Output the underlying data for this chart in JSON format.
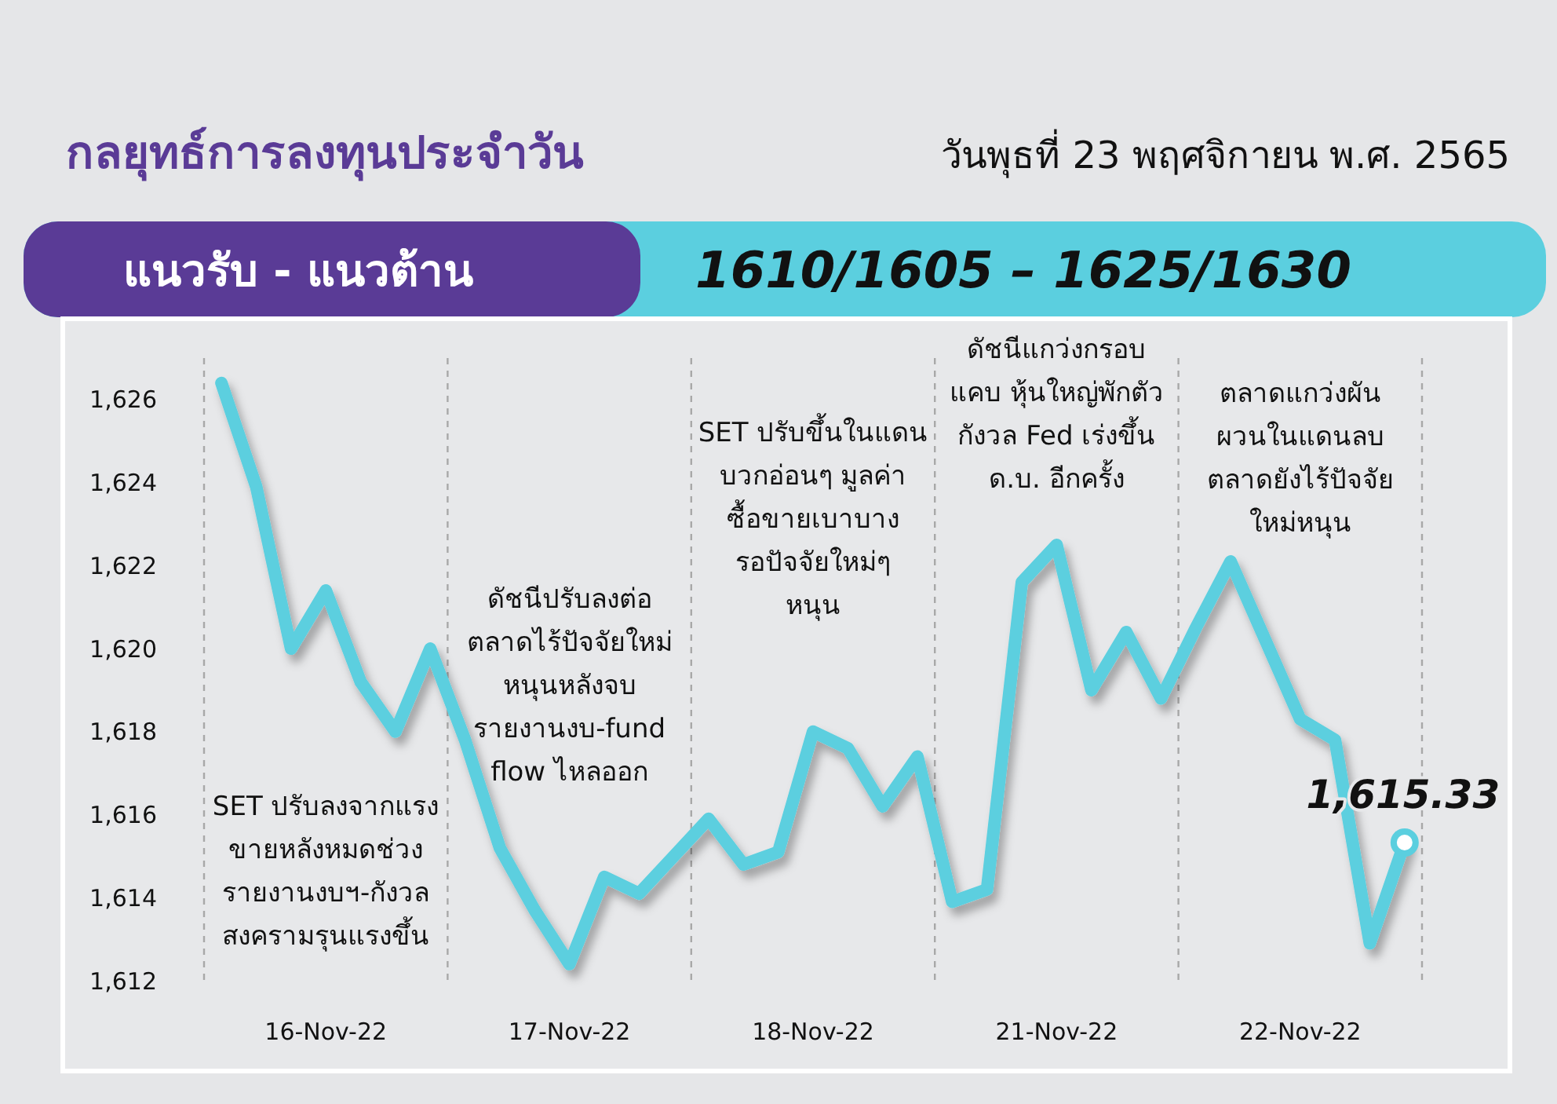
{
  "chart_data": {
    "type": "line",
    "title": "กลยุทธ์การลงทุนประจำวัน",
    "subtitle": "วันพุธที่ 23 พฤศจิกายน พ.ศ. 2565",
    "annotations": [
      "แนวรับ - แนวต้าน",
      "1610/1605 – 1625/1630",
      "SET ปรับลงจากแรง\nขายหลังหมดช่วง\nรายงานงบฯ-กังวล\nสงครามรุนแรงขึ้น",
      "ดัชนีปรับลงต่อ\nตลาดไร้ปัจจัยใหม่\nหนุนหลังจบ\nรายงานงบ-fund\nflow ไหลออก",
      "SET ปรับขึ้นในแดน\nบวกอ่อนๆ มูลค่า\nซื้อขายเบาบาง\nรอปัจจัยใหม่ๆ\nหนุน",
      "ดัชนีแกว่งกรอบ\nแคบ หุ้นใหญ่พักตัว\nกังวล Fed เร่งขึ้น\nด.บ. อีกครั้ง",
      "ตลาดแกว่งผัน\nผวนในแดนลบ\nตลาดยังไร้ปัจจัย\nใหม่หนุน"
    ],
    "categories": [
      null,
      null,
      null,
      "16-Nov-22",
      null,
      null,
      null,
      null,
      null,
      null,
      "17-Nov-22",
      null,
      null,
      null,
      null,
      null,
      null,
      "18-Nov-22",
      null,
      null,
      null,
      null,
      null,
      null,
      "21-Nov-22",
      null,
      null,
      null,
      null,
      null,
      null,
      "22-Nov-22",
      null,
      null,
      null
    ],
    "ylim": [
      1612,
      1627
    ],
    "yticks": [
      {
        "value": 1612,
        "label": "1,612"
      },
      {
        "value": 1614,
        "label": "1,614"
      },
      {
        "value": 1616,
        "label": "1,616"
      },
      {
        "value": 1618,
        "label": "1,618"
      },
      {
        "value": 1620,
        "label": "1,620"
      },
      {
        "value": 1622,
        "label": "1,622"
      },
      {
        "value": 1624,
        "label": "1,624"
      },
      {
        "value": 1626,
        "label": "1,626"
      }
    ],
    "grid": "x",
    "series": [
      {
        "color": "#5bcfdf",
        "values": [
          1626.4,
          1623.9,
          1620.0,
          1621.4,
          1619.2,
          1618.0,
          1620.0,
          1617.8,
          1615.2,
          1613.7,
          1612.4,
          1614.5,
          1614.1,
          1615.0,
          1615.9,
          1614.8,
          1615.1,
          1618.0,
          1617.6,
          1616.2,
          1617.4,
          1613.9,
          1614.2,
          1621.6,
          1622.5,
          1619.0,
          1620.4,
          1618.8,
          1620.5,
          1622.1,
          1620.2,
          1618.3,
          1617.8,
          1612.9,
          1615.33
        ]
      },
      {
        "type": "scatter",
        "color": "#5bcfdf",
        "marker": "circle",
        "values": [
          null,
          null,
          null,
          null,
          null,
          null,
          null,
          null,
          null,
          null,
          null,
          null,
          null,
          null,
          null,
          null,
          null,
          null,
          null,
          null,
          null,
          null,
          null,
          null,
          null,
          null,
          null,
          null,
          null,
          null,
          null,
          null,
          null,
          null,
          1615.33
        ],
        "value_labels": [
          null,
          null,
          null,
          null,
          null,
          null,
          null,
          null,
          null,
          null,
          null,
          null,
          null,
          null,
          null,
          null,
          null,
          null,
          null,
          null,
          null,
          null,
          null,
          null,
          null,
          null,
          null,
          null,
          null,
          null,
          null,
          null,
          null,
          null,
          "1,615.33"
        ]
      }
    ]
  }
}
